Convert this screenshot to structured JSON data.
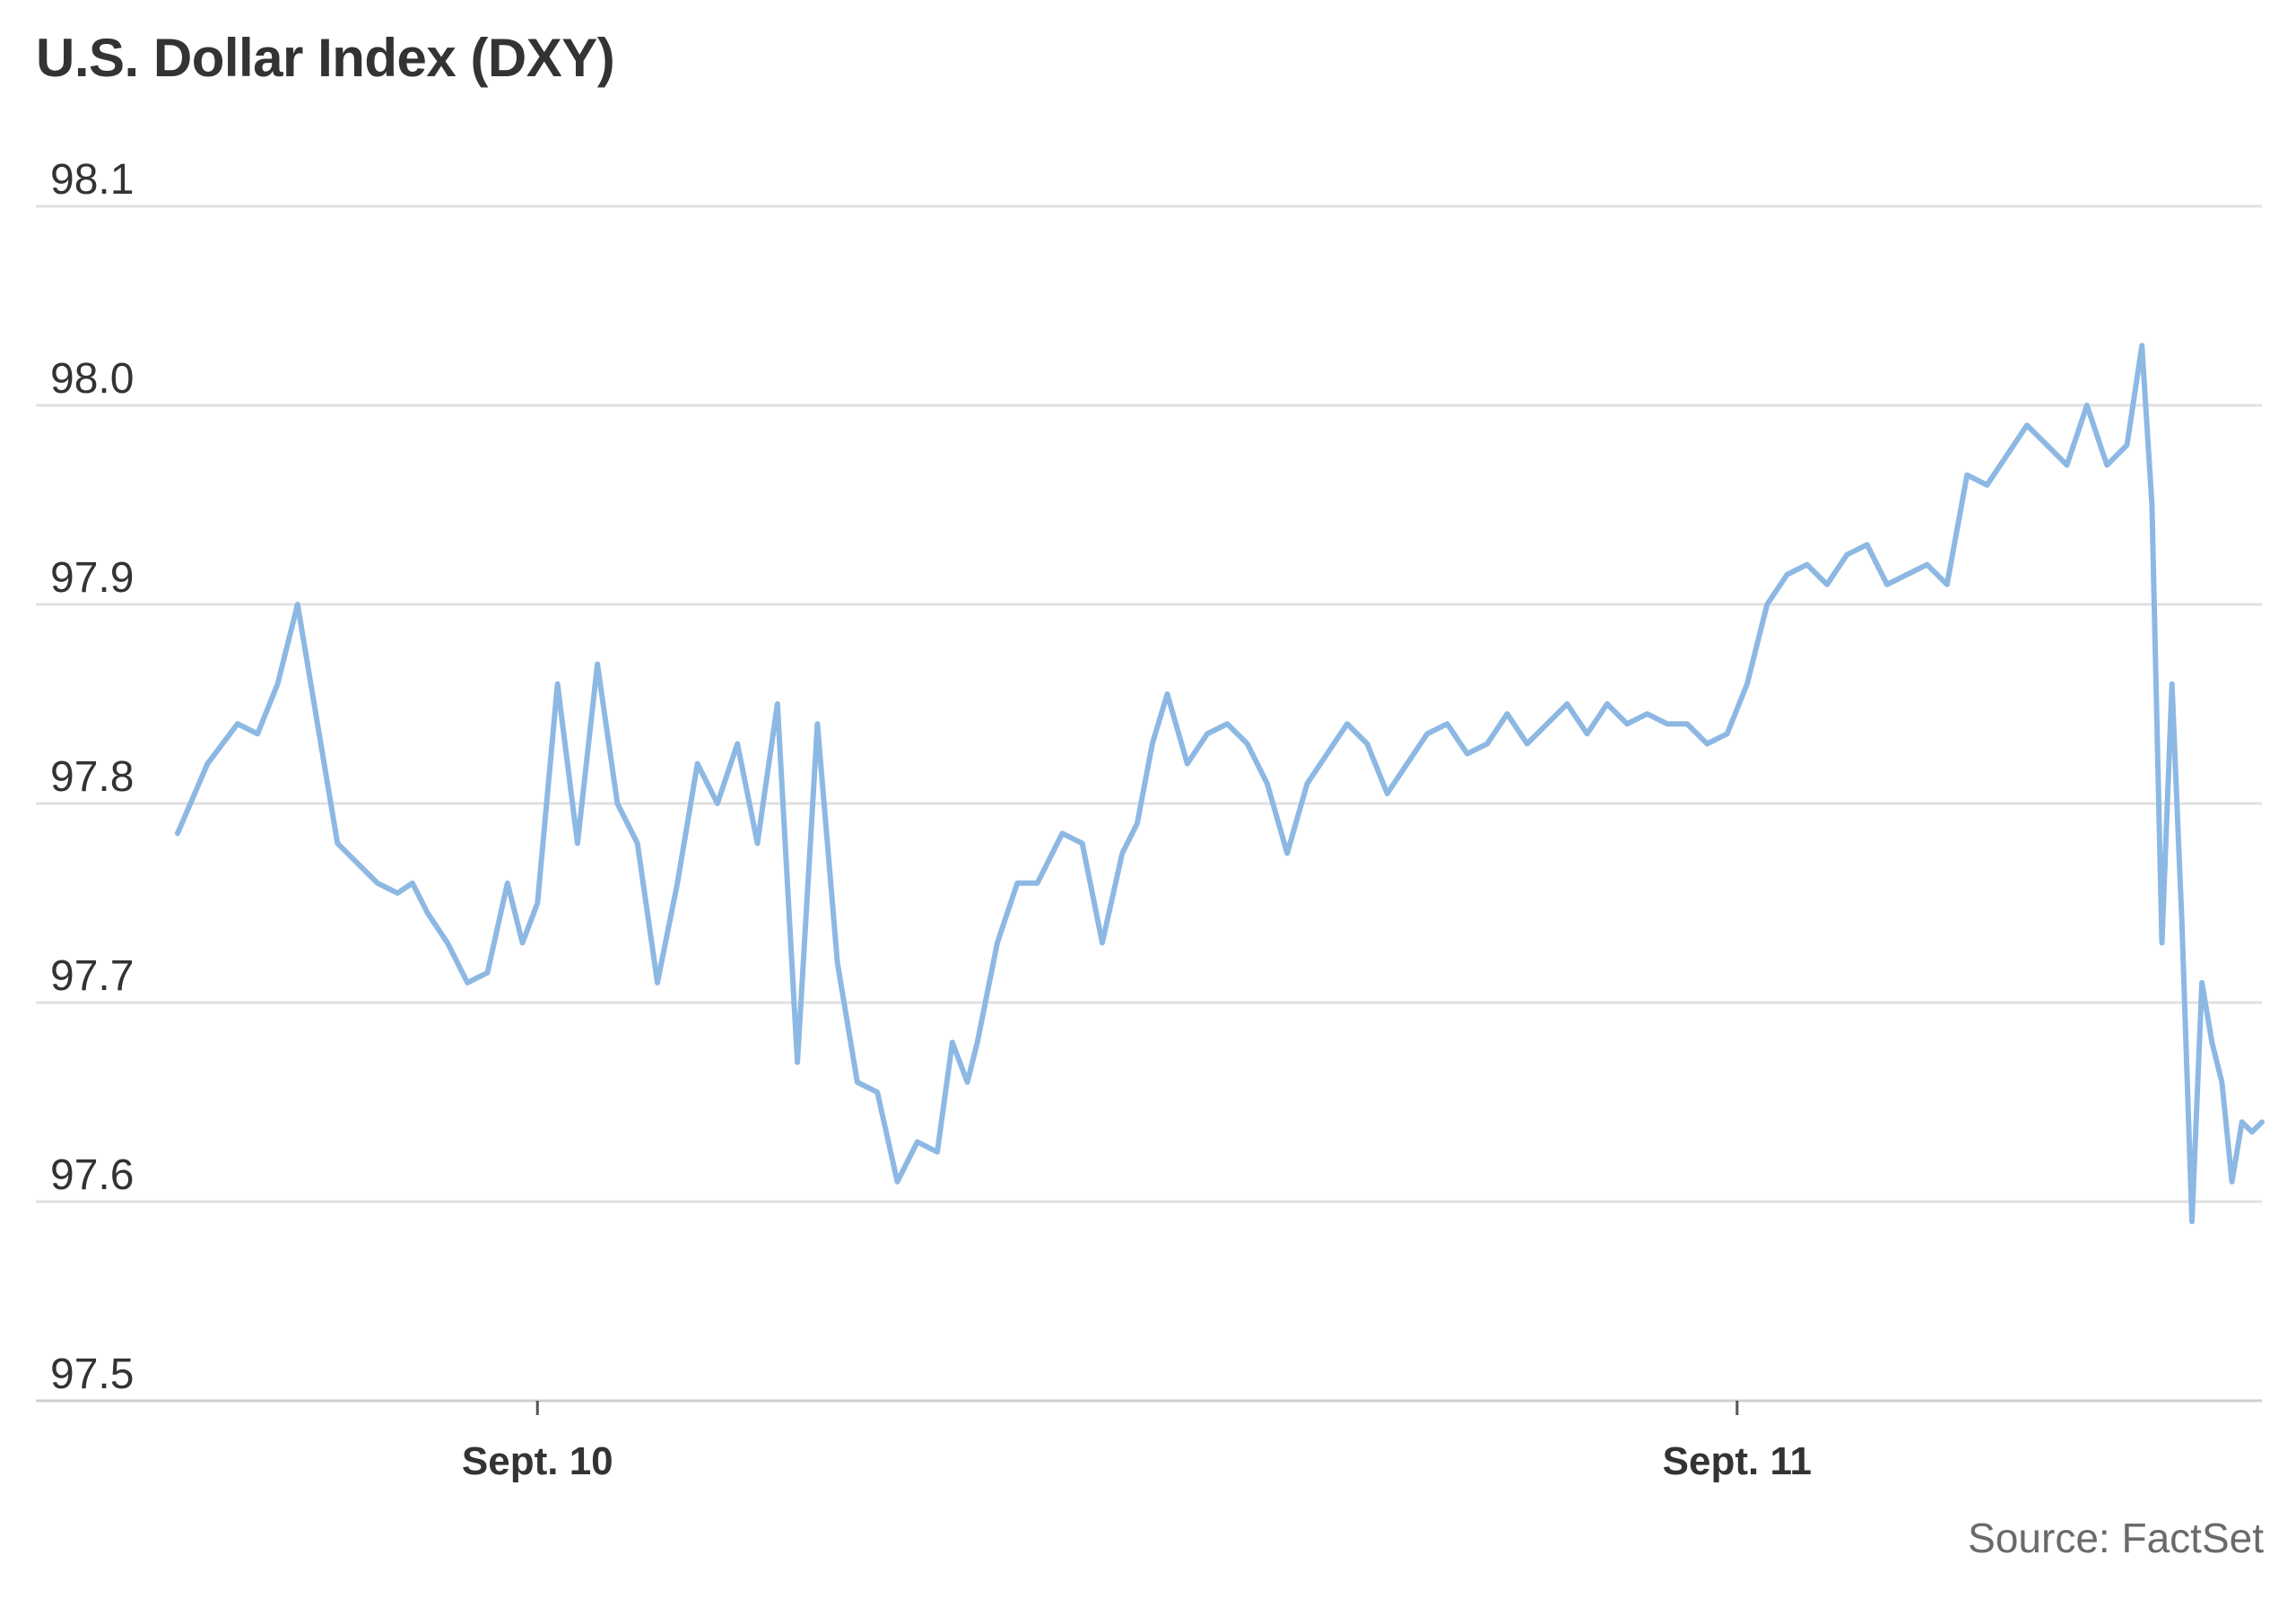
{
  "title": "U.S. Dollar Index (DXY)",
  "source": "Source: FactSet",
  "colors": {
    "line": "#8db8e3",
    "grid": "#e0e0e0",
    "axis": "#cfcfcf",
    "text": "#333333",
    "source_text": "#6a6a6a"
  },
  "chart_data": {
    "type": "line",
    "title": "U.S. Dollar Index (DXY)",
    "xlabel": "",
    "ylabel": "",
    "ylim": [
      97.5,
      98.1
    ],
    "yticks": [
      98.1,
      98.0,
      97.9,
      97.8,
      97.7,
      97.6,
      97.5
    ],
    "ytick_labels": [
      "98.1",
      "98.0",
      "97.9",
      "97.8",
      "97.7",
      "97.6",
      "97.5"
    ],
    "x_unit": "hours",
    "xlim": [
      -7.2,
      34.5
    ],
    "xticks": [
      0,
      24
    ],
    "xtick_labels": [
      "Sept. 10",
      "Sept. 11"
    ],
    "grid": true,
    "legend": "none",
    "series": [
      {
        "x": [
          -7.2,
          -6.6,
          -6.0,
          -5.6,
          -5.2,
          -4.8,
          -4.4,
          -4.0,
          -3.6,
          -3.2,
          -2.8,
          -2.5,
          -2.2,
          -1.8,
          -1.4,
          -1.0,
          -0.6,
          -0.3,
          0.0,
          0.4,
          0.8,
          1.2,
          1.6,
          2.0,
          2.4,
          2.8,
          3.2,
          3.6,
          4.0,
          4.4,
          4.8,
          5.2,
          5.6,
          6.0,
          6.4,
          6.8,
          7.2,
          7.6,
          8.0,
          8.3,
          8.6,
          8.8,
          9.2,
          9.6,
          10.0,
          10.5,
          10.9,
          11.3,
          11.7,
          12.0,
          12.3,
          12.6,
          13.0,
          13.4,
          13.8,
          14.2,
          14.6,
          15.0,
          15.4,
          15.8,
          16.2,
          16.6,
          17.0,
          17.4,
          17.8,
          18.2,
          18.6,
          19.0,
          19.4,
          19.8,
          20.2,
          20.6,
          21.0,
          21.4,
          21.8,
          22.2,
          22.6,
          23.0,
          23.4,
          23.8,
          24.2,
          24.6,
          25.0,
          25.4,
          25.8,
          26.2,
          26.6,
          27.0,
          27.4,
          27.8,
          28.2,
          28.6,
          29.0,
          29.4,
          29.8,
          30.2,
          30.6,
          31.0,
          31.4,
          31.8,
          32.1,
          32.3,
          32.5,
          32.7,
          32.9,
          33.1,
          33.3,
          33.5,
          33.7,
          33.9,
          34.1,
          34.3,
          34.5
        ],
        "values": [
          97.785,
          97.82,
          97.84,
          97.835,
          97.86,
          97.9,
          97.84,
          97.78,
          97.77,
          97.76,
          97.755,
          97.76,
          97.745,
          97.73,
          97.71,
          97.715,
          97.76,
          97.73,
          97.75,
          97.86,
          97.78,
          97.87,
          97.8,
          97.78,
          97.71,
          97.76,
          97.82,
          97.8,
          97.83,
          97.78,
          97.85,
          97.67,
          97.84,
          97.72,
          97.66,
          97.655,
          97.61,
          97.63,
          97.625,
          97.68,
          97.66,
          97.68,
          97.73,
          97.76,
          97.76,
          97.785,
          97.78,
          97.73,
          97.775,
          97.79,
          97.83,
          97.855,
          97.82,
          97.835,
          97.84,
          97.83,
          97.81,
          97.775,
          97.81,
          97.825,
          97.84,
          97.83,
          97.805,
          97.82,
          97.835,
          97.84,
          97.825,
          97.83,
          97.845,
          97.83,
          97.84,
          97.85,
          97.835,
          97.85,
          97.84,
          97.845,
          97.84,
          97.84,
          97.83,
          97.835,
          97.86,
          97.9,
          97.915,
          97.92,
          97.91,
          97.925,
          97.93,
          97.91,
          97.915,
          97.92,
          97.91,
          97.965,
          97.96,
          97.975,
          97.99,
          97.98,
          97.97,
          98.0,
          97.97,
          97.98,
          98.03,
          97.95,
          97.73,
          97.86,
          97.74,
          97.59,
          97.71,
          97.68,
          97.66,
          97.61,
          97.64,
          97.635,
          97.64
        ]
      }
    ]
  }
}
